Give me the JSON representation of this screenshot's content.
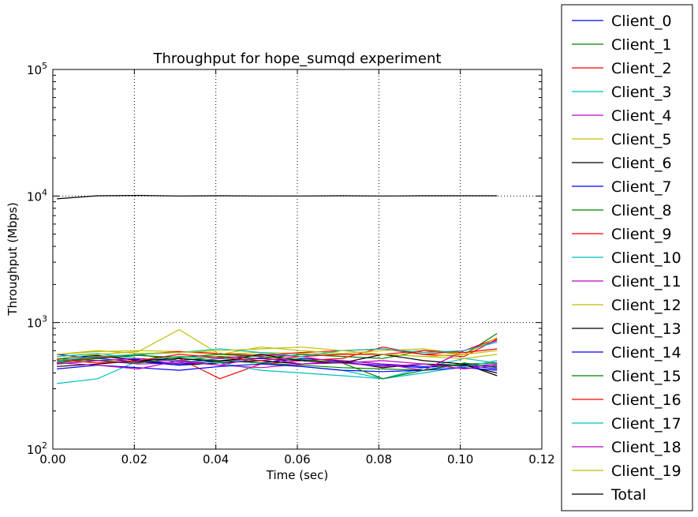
{
  "chart_data": {
    "type": "line",
    "title": "Throughput for hope_sumqd experiment",
    "xlabel": "Time (sec)",
    "ylabel": "Throughput (Mbps)",
    "xlim": [
      0,
      0.12
    ],
    "ylim": [
      100,
      100000
    ],
    "yscale": "log",
    "grid": true,
    "legend_position": "outside-right",
    "x_ticks": [
      "0.00",
      "0.02",
      "0.04",
      "0.06",
      "0.08",
      "0.10",
      "0.12"
    ],
    "y_ticks": [
      {
        "base": "10",
        "exp": "2"
      },
      {
        "base": "10",
        "exp": "3"
      },
      {
        "base": "10",
        "exp": "4"
      },
      {
        "base": "10",
        "exp": "5"
      }
    ],
    "x": [
      0.001,
      0.011,
      0.021,
      0.031,
      0.041,
      0.051,
      0.061,
      0.071,
      0.081,
      0.091,
      0.101,
      0.109
    ],
    "series": [
      {
        "name": "Client_0",
        "color": "#0000ff",
        "values": [
          500,
          540,
          510,
          470,
          500,
          480,
          520,
          500,
          470,
          450,
          460,
          430
        ]
      },
      {
        "name": "Client_1",
        "color": "#008000",
        "values": [
          480,
          520,
          560,
          500,
          540,
          520,
          560,
          540,
          520,
          600,
          560,
          820
        ]
      },
      {
        "name": "Client_2",
        "color": "#ff0000",
        "values": [
          470,
          500,
          480,
          520,
          360,
          470,
          500,
          520,
          640,
          560,
          540,
          740
        ]
      },
      {
        "name": "Client_3",
        "color": "#00bfbf",
        "values": [
          330,
          360,
          500,
          540,
          520,
          480,
          450,
          420,
          360,
          440,
          520,
          480
        ]
      },
      {
        "name": "Client_4",
        "color": "#bf00bf",
        "values": [
          520,
          500,
          470,
          480,
          520,
          560,
          540,
          480,
          500,
          470,
          450,
          470
        ]
      },
      {
        "name": "Client_5",
        "color": "#bfbf00",
        "values": [
          560,
          590,
          600,
          590,
          560,
          580,
          570,
          560,
          560,
          540,
          520,
          560
        ]
      },
      {
        "name": "Client_6",
        "color": "#000000",
        "values": [
          520,
          550,
          500,
          460,
          480,
          500,
          470,
          490,
          440,
          470,
          460,
          400
        ]
      },
      {
        "name": "Client_7",
        "color": "#0000ff",
        "values": [
          560,
          520,
          490,
          460,
          500,
          520,
          500,
          480,
          460,
          440,
          470,
          450
        ]
      },
      {
        "name": "Client_8",
        "color": "#008000",
        "values": [
          520,
          500,
          480,
          520,
          500,
          480,
          460,
          440,
          430,
          420,
          470,
          480
        ]
      },
      {
        "name": "Client_9",
        "color": "#ff0000",
        "values": [
          500,
          530,
          560,
          590,
          570,
          550,
          580,
          600,
          620,
          560,
          600,
          750
        ]
      },
      {
        "name": "Client_10",
        "color": "#00bfbf",
        "values": [
          540,
          570,
          520,
          500,
          480,
          420,
          400,
          380,
          360,
          400,
          450,
          500
        ]
      },
      {
        "name": "Client_11",
        "color": "#bf00bf",
        "values": [
          470,
          500,
          520,
          490,
          460,
          440,
          470,
          500,
          470,
          420,
          600,
          720
        ]
      },
      {
        "name": "Client_12",
        "color": "#bfbf00",
        "values": [
          520,
          560,
          590,
          880,
          560,
          640,
          600,
          570,
          600,
          620,
          560,
          760
        ]
      },
      {
        "name": "Client_13",
        "color": "#000000",
        "values": [
          450,
          470,
          500,
          520,
          490,
          560,
          500,
          480,
          560,
          500,
          470,
          380
        ]
      },
      {
        "name": "Client_14",
        "color": "#0000ff",
        "values": [
          430,
          460,
          440,
          420,
          450,
          470,
          450,
          420,
          410,
          420,
          440,
          420
        ]
      },
      {
        "name": "Client_15",
        "color": "#008000",
        "values": [
          490,
          520,
          550,
          530,
          560,
          540,
          510,
          480,
          360,
          420,
          480,
          440
        ]
      },
      {
        "name": "Client_16",
        "color": "#ff0000",
        "values": [
          510,
          480,
          500,
          560,
          530,
          500,
          540,
          560,
          560,
          600,
          580,
          620
        ]
      },
      {
        "name": "Client_17",
        "color": "#00bfbf",
        "values": [
          500,
          540,
          560,
          580,
          620,
          580,
          540,
          600,
          620,
          580,
          600,
          700
        ]
      },
      {
        "name": "Client_18",
        "color": "#bf00bf",
        "values": [
          480,
          460,
          430,
          500,
          460,
          530,
          470,
          480,
          450,
          470,
          430,
          460
        ]
      },
      {
        "name": "Client_19",
        "color": "#bfbf00",
        "values": [
          560,
          600,
          570,
          580,
          600,
          620,
          640,
          600,
          560,
          540,
          560,
          600
        ]
      },
      {
        "name": "Total",
        "color": "#000000",
        "values": [
          9500,
          10050,
          10100,
          10000,
          10050,
          10000,
          10000,
          10050,
          10000,
          10050,
          10050,
          10050
        ]
      }
    ]
  }
}
